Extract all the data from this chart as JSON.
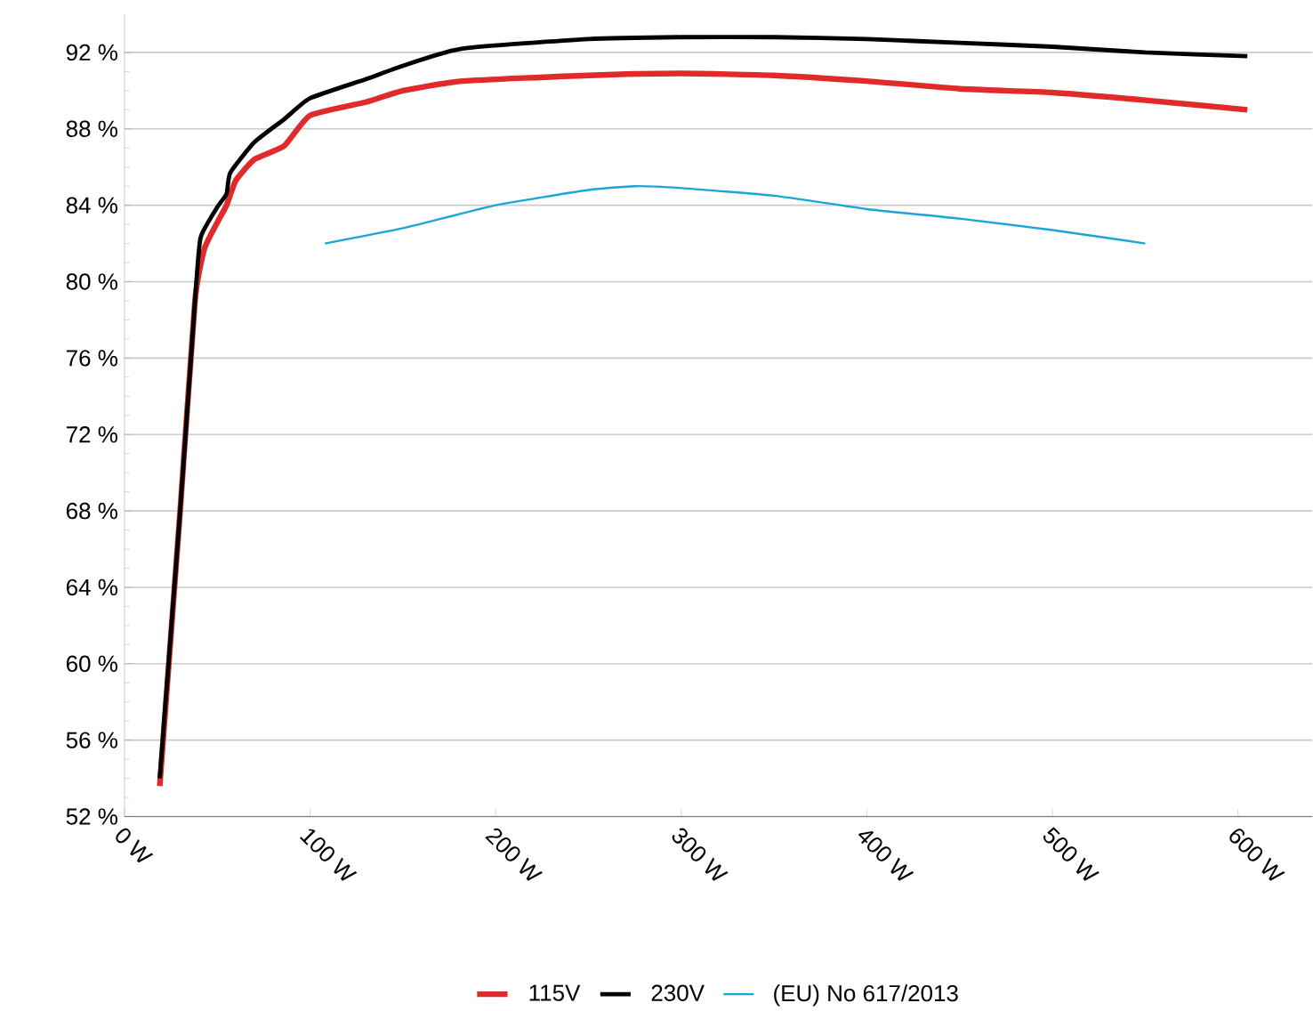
{
  "chart_data": {
    "type": "line",
    "xlim": [
      0,
      640
    ],
    "ylim": [
      52,
      94
    ],
    "xticks": [
      {
        "value": 0,
        "label": "0 W"
      },
      {
        "value": 100,
        "label": "100 W"
      },
      {
        "value": 200,
        "label": "200 W"
      },
      {
        "value": 300,
        "label": "300 W"
      },
      {
        "value": 400,
        "label": "400 W"
      },
      {
        "value": 500,
        "label": "500 W"
      },
      {
        "value": 600,
        "label": "600 W"
      }
    ],
    "yticks": [
      {
        "value": 52,
        "label": "52 %"
      },
      {
        "value": 56,
        "label": "56 %"
      },
      {
        "value": 60,
        "label": "60 %"
      },
      {
        "value": 64,
        "label": "64 %"
      },
      {
        "value": 68,
        "label": "68 %"
      },
      {
        "value": 72,
        "label": "72 %"
      },
      {
        "value": 76,
        "label": "76 %"
      },
      {
        "value": 80,
        "label": "80 %"
      },
      {
        "value": 84,
        "label": "84 %"
      },
      {
        "value": 88,
        "label": "88 %"
      },
      {
        "value": 92,
        "label": "92 %"
      }
    ],
    "grid": "y",
    "legend": "bottom",
    "marker": "none",
    "line_style": "solid",
    "series": [
      {
        "name": "115V",
        "color": "#e02b2b",
        "x": [
          19,
          30,
          38,
          43,
          50,
          55,
          60,
          70,
          86,
          100,
          130,
          150,
          182,
          250,
          300,
          350,
          400,
          450,
          500,
          550,
          605
        ],
        "values": [
          53.6,
          68,
          79,
          81.7,
          83.1,
          84,
          85.3,
          86.4,
          87.1,
          88.7,
          89.4,
          90.0,
          90.5,
          90.8,
          90.9,
          90.8,
          90.5,
          90.1,
          89.9,
          89.5,
          89.0
        ]
      },
      {
        "name": "230V",
        "color": "#000000",
        "x": [
          19,
          30,
          38,
          41,
          50,
          55,
          57,
          70,
          86,
          100,
          130,
          150,
          182,
          250,
          300,
          350,
          400,
          450,
          500,
          550,
          605
        ],
        "values": [
          54,
          68,
          79,
          82.3,
          83.9,
          84.6,
          85.7,
          87.3,
          88.5,
          89.6,
          90.6,
          91.3,
          92.2,
          92.7,
          92.8,
          92.8,
          92.7,
          92.5,
          92.3,
          92.0,
          91.8
        ]
      },
      {
        "name": "(EU) No 617/2013",
        "color": "#1ea5d8",
        "x": [
          108,
          150,
          200,
          250,
          275,
          300,
          350,
          400,
          450,
          500,
          550
        ],
        "values": [
          82.0,
          82.8,
          84.0,
          84.8,
          85.0,
          84.9,
          84.5,
          83.8,
          83.3,
          82.7,
          82.0
        ]
      }
    ]
  }
}
